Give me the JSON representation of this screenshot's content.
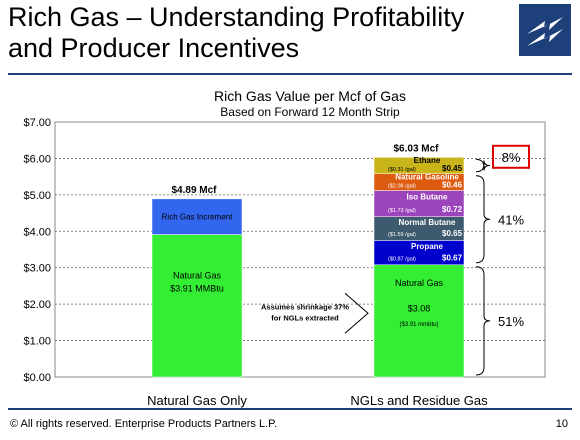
{
  "slide": {
    "title": "Rich Gas – Understanding Profitability and Producer Incentives",
    "footer": "©  All rights reserved. Enterprise Products Partners L.P.",
    "page_number": "10"
  },
  "chart_data": {
    "type": "bar",
    "title": "Rich Gas Value per Mcf of Gas",
    "subtitle": "Based on Forward 12 Month Strip",
    "ylim": [
      0,
      7
    ],
    "yticks": [
      "$0.00",
      "$1.00",
      "$2.00",
      "$3.00",
      "$4.00",
      "$5.00",
      "$6.00",
      "$7.00"
    ],
    "grid": true,
    "categories": [
      "Natural Gas Only",
      "NGLs and Residue Gas"
    ],
    "bars": [
      {
        "category": "Natural Gas Only",
        "total_label": "$4.89  Mcf",
        "segments": [
          {
            "name": "Natural Gas",
            "value": 3.91,
            "color": "#33ee33",
            "labels": [
              "Natural Gas",
              "$3.91  MMBtu"
            ]
          },
          {
            "name": "Rich Gas Increment",
            "value": 0.98,
            "color": "#3366ee",
            "labels": [
              "Rich Gas Increment"
            ]
          }
        ]
      },
      {
        "category": "NGLs and Residue Gas",
        "total_label": "$6.03  Mcf",
        "segments": [
          {
            "name": "Natural Gas",
            "value": 3.08,
            "color": "#33ee33",
            "labels": [
              "Natural Gas",
              "$3.08",
              "($3.91 mmbtu)"
            ]
          },
          {
            "name": "Propane",
            "value": 0.67,
            "color": "#0000cc",
            "labels": [
              "Propane",
              "($0.87 /gal)",
              "$0.67"
            ]
          },
          {
            "name": "Normal Butane",
            "value": 0.65,
            "color": "#3d5a6e",
            "labels": [
              "Normal Butane",
              "($1.59 /gal)",
              "$0.65"
            ]
          },
          {
            "name": "Iso Butane",
            "value": 0.72,
            "color": "#9c44bb",
            "labels": [
              "Iso Butane",
              "($1.73 /gal)",
              "$0.72"
            ]
          },
          {
            "name": "Natural Gasoline",
            "value": 0.46,
            "color": "#dd5a11",
            "labels": [
              "Natural Gasoline",
              "($2.08 /gal)",
              "$0.46"
            ]
          },
          {
            "name": "Ethane",
            "value": 0.45,
            "color": "#c9b51a",
            "labels": [
              "Ethane",
              "($0.31 /gal)",
              "$0.45"
            ]
          }
        ]
      }
    ],
    "brackets": [
      {
        "label": "51%",
        "from": 0,
        "to": 3.08
      },
      {
        "label": "41%",
        "from": 3.08,
        "to": 5.58
      },
      {
        "label": "8%",
        "from": 5.58,
        "to": 6.03,
        "boxed": true
      }
    ],
    "annotation": [
      "Assumes  shrinkage 37%",
      "for NGLs extracted"
    ]
  },
  "colors": {
    "brand": "#1d3f7a",
    "highlight_box": "#dd0000",
    "grid": "#666666"
  }
}
